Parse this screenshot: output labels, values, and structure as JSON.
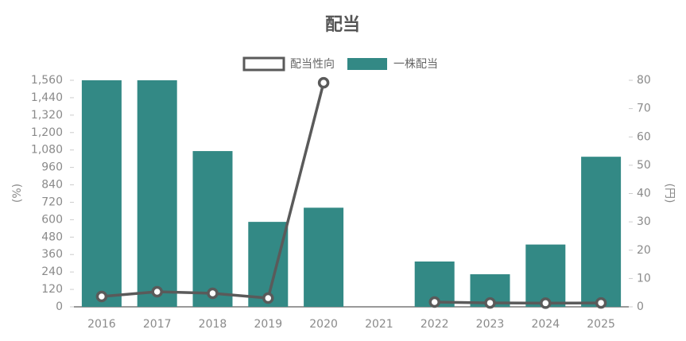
{
  "chart_data": {
    "type": "bar",
    "title": "配当",
    "categories": [
      "2016",
      "2017",
      "2018",
      "2019",
      "2020",
      "2021",
      "2022",
      "2023",
      "2024",
      "2025"
    ],
    "series": [
      {
        "name": "配当性向",
        "type": "line",
        "axis": "y",
        "color": "#5a5a5a",
        "values": [
          71,
          104,
          93,
          60,
          1543,
          null,
          33,
          27,
          25,
          27
        ]
      },
      {
        "name": "一株配当",
        "type": "bar",
        "axis": "y2",
        "color": "#338985",
        "values": [
          80,
          80,
          55,
          30,
          35,
          null,
          16,
          11.5,
          22,
          53
        ]
      }
    ],
    "ylabel": "(%)",
    "y2label": "(円)",
    "ylim": [
      0,
      1560
    ],
    "yticks": [
      0,
      120,
      240,
      360,
      480,
      600,
      720,
      840,
      960,
      {
        "value": 1080,
        "label": "1,080"
      },
      {
        "value": 1200,
        "label": "1,200"
      },
      {
        "value": 1320,
        "label": "1,320"
      },
      {
        "value": 1440,
        "label": "1,440"
      },
      {
        "value": 1560,
        "label": "1,560"
      }
    ],
    "y2lim": [
      0,
      80
    ],
    "y2ticks": [
      0,
      10,
      20,
      30,
      40,
      50,
      60,
      70,
      80
    ],
    "grid": false,
    "legend": "top"
  }
}
